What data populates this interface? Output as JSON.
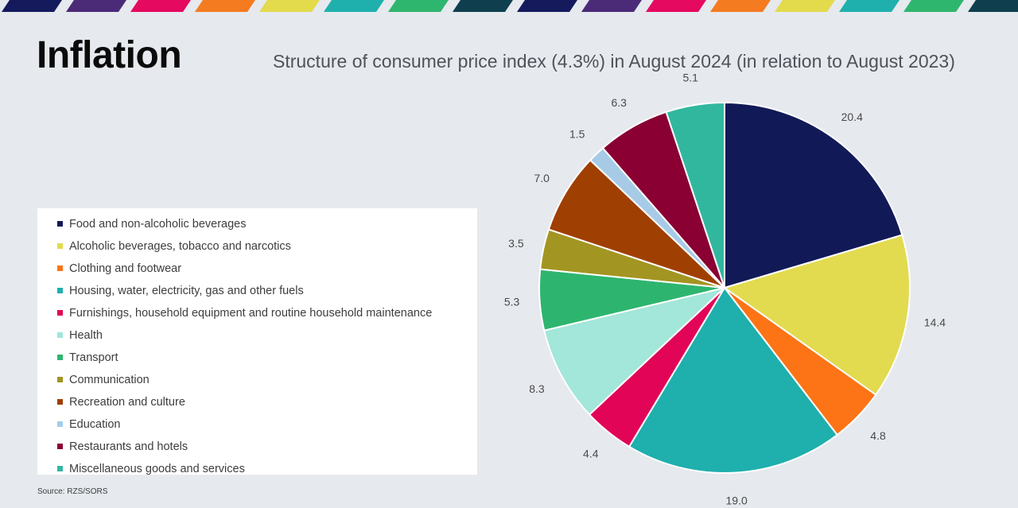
{
  "page_title": "Inflation",
  "chart_title": "Structure of consumer price index (4.3%) in August 2024 (in relation to August 2023)",
  "source": "Source: RZS/SORS",
  "stripe_colors": [
    "#141a5c",
    "#4b2a78",
    "#e5095f",
    "#f47b20",
    "#e3da4c",
    "#1fb0ad",
    "#2fb66e",
    "#0f3f4f",
    "#141a5c",
    "#4b2a78",
    "#e5095f",
    "#f47b20",
    "#e3da4c",
    "#1fb0ad",
    "#2fb66e",
    "#0f3f4f"
  ],
  "chart_data": {
    "type": "pie",
    "title": "Structure of consumer price index (4.3%) in August 2024 (in relation to August 2023)",
    "legend_placement": "left",
    "slices": [
      {
        "label": "Food and non-alcoholic beverages",
        "value": 20.4,
        "display": "20.4",
        "color": "#111a57"
      },
      {
        "label": "Alcoholic beverages, tobacco and narcotics",
        "value": 14.4,
        "display": "14.4",
        "color": "#e2db4f"
      },
      {
        "label": "Clothing and footwear",
        "value": 4.8,
        "display": "4.8",
        "color": "#fc7416"
      },
      {
        "label": "Housing, water, electricity, gas and other fuels",
        "value": 19.0,
        "display": "19.0",
        "color": "#1fafad"
      },
      {
        "label": "Furnishings, household equipment and routine household maintenance",
        "value": 4.4,
        "display": "4.4",
        "color": "#e20557"
      },
      {
        "label": "Health",
        "value": 8.3,
        "display": "8.3",
        "color": "#a3e6da"
      },
      {
        "label": "Transport",
        "value": 5.3,
        "display": "5.3",
        "color": "#2db56f"
      },
      {
        "label": "Communication",
        "value": 3.5,
        "display": "3.5",
        "color": "#a39522"
      },
      {
        "label": "Recreation and culture",
        "value": 7.0,
        "display": "7.0",
        "color": "#a03f02"
      },
      {
        "label": "Education",
        "value": 1.5,
        "display": "1.5",
        "color": "#a7cbe7"
      },
      {
        "label": "Restaurants and hotels",
        "value": 6.3,
        "display": "6.3",
        "color": "#8a0032"
      },
      {
        "label": "Miscellaneous goods and services",
        "value": 5.1,
        "display": "5.1",
        "color": "#32b79f"
      }
    ]
  }
}
